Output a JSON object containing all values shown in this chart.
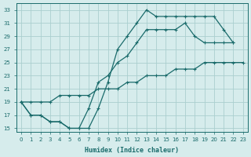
{
  "xlabel": "Humidex (Indice chaleur)",
  "bg_color": "#d6ecec",
  "grid_color": "#aacfcf",
  "line_color": "#1a6b6b",
  "xlim": [
    -0.5,
    23.5
  ],
  "ylim": [
    14.5,
    34.0
  ],
  "xticks": [
    0,
    1,
    2,
    3,
    4,
    5,
    6,
    7,
    8,
    9,
    10,
    11,
    12,
    13,
    14,
    15,
    16,
    17,
    18,
    19,
    20,
    21,
    22,
    23
  ],
  "yticks": [
    15,
    17,
    19,
    21,
    23,
    25,
    27,
    29,
    31,
    33
  ],
  "curve1_x": [
    0,
    1,
    2,
    3,
    4,
    5,
    6,
    7,
    8,
    9,
    10,
    11,
    12,
    13,
    14,
    15,
    16,
    17,
    18,
    19,
    20,
    21,
    22
  ],
  "curve1_y": [
    19,
    17,
    17,
    16,
    16,
    15,
    15,
    15,
    18,
    22,
    27,
    29,
    31,
    33,
    32,
    32,
    32,
    32,
    32,
    32,
    32,
    30,
    28
  ],
  "curve2_x": [
    0,
    1,
    2,
    3,
    4,
    5,
    6,
    7,
    8,
    9,
    10,
    11,
    12,
    13,
    14,
    15,
    16,
    17,
    18,
    19,
    20,
    21,
    22
  ],
  "curve2_y": [
    19,
    17,
    17,
    16,
    16,
    15,
    15,
    18,
    22,
    23,
    25,
    26,
    28,
    30,
    30,
    30,
    30,
    31,
    29,
    28,
    28,
    28,
    28
  ],
  "curve3_x": [
    0,
    1,
    2,
    3,
    4,
    5,
    6,
    7,
    8,
    9,
    10,
    11,
    12,
    13,
    14,
    15,
    16,
    17,
    18,
    19,
    20,
    21,
    22,
    23
  ],
  "curve3_y": [
    19,
    19,
    19,
    19,
    20,
    20,
    20,
    20,
    21,
    21,
    21,
    22,
    22,
    23,
    23,
    23,
    24,
    24,
    24,
    25,
    25,
    25,
    25,
    25
  ]
}
